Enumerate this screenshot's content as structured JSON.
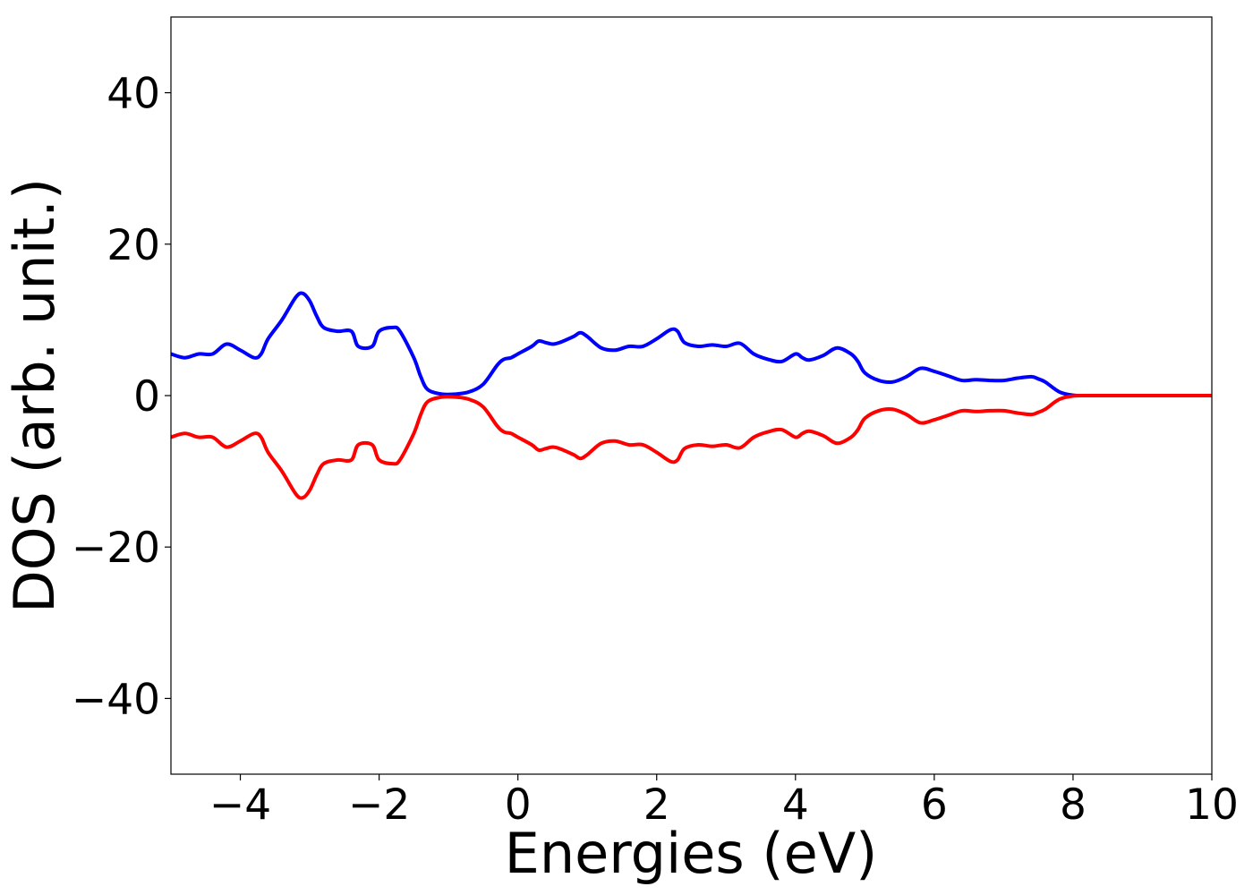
{
  "chart_data": {
    "type": "line",
    "title": "",
    "xlabel": "Energies (eV)",
    "ylabel": "DOS (arb. unit.)",
    "xlim": [
      -5,
      10
    ],
    "ylim": [
      -50,
      50
    ],
    "xticks": [
      -4,
      -2,
      0,
      2,
      4,
      6,
      8,
      10
    ],
    "yticks": [
      -40,
      -20,
      0,
      20,
      40
    ],
    "xtick_labels": [
      "−4",
      "−2",
      "0",
      "2",
      "4",
      "6",
      "8",
      "10"
    ],
    "ytick_labels": [
      "−40",
      "−20",
      "0",
      "20",
      "40"
    ],
    "grid": false,
    "legend": "none",
    "x": [
      -5.0,
      -4.8,
      -4.6,
      -4.4,
      -4.2,
      -4.0,
      -3.8,
      -3.7,
      -3.6,
      -3.4,
      -3.2,
      -3.1,
      -3.0,
      -2.9,
      -2.8,
      -2.6,
      -2.4,
      -2.3,
      -2.1,
      -2.0,
      -1.8,
      -1.7,
      -1.5,
      -1.4,
      -1.3,
      -1.1,
      -0.9,
      -0.7,
      -0.5,
      -0.3,
      -0.2,
      -0.1,
      0.0,
      0.2,
      0.3,
      0.4,
      0.5,
      0.6,
      0.8,
      0.9,
      1.0,
      1.2,
      1.4,
      1.6,
      1.8,
      2.0,
      2.2,
      2.3,
      2.4,
      2.6,
      2.8,
      3.0,
      3.2,
      3.4,
      3.6,
      3.8,
      4.0,
      4.1,
      4.2,
      4.4,
      4.6,
      4.8,
      4.9,
      5.0,
      5.2,
      5.4,
      5.6,
      5.8,
      6.0,
      6.2,
      6.4,
      6.6,
      6.8,
      7.0,
      7.2,
      7.4,
      7.5,
      7.6,
      7.8,
      8.0,
      8.2,
      8.5,
      9.0,
      9.5,
      10.0
    ],
    "series": [
      {
        "color": "#0000ff",
        "values": [
          5.5,
          5.0,
          5.5,
          5.5,
          6.8,
          6.0,
          5.0,
          5.5,
          7.5,
          10.0,
          13.0,
          13.5,
          12.5,
          10.5,
          9.0,
          8.5,
          8.5,
          6.5,
          6.5,
          8.5,
          9.0,
          8.5,
          5.0,
          2.5,
          0.8,
          0.2,
          0.2,
          0.5,
          1.5,
          4.0,
          4.8,
          5.0,
          5.5,
          6.5,
          7.2,
          7.0,
          6.8,
          7.0,
          7.8,
          8.3,
          7.8,
          6.3,
          6.0,
          6.5,
          6.5,
          7.5,
          8.7,
          8.5,
          7.0,
          6.5,
          6.7,
          6.5,
          6.9,
          5.5,
          4.8,
          4.5,
          5.5,
          5.0,
          4.7,
          5.3,
          6.3,
          5.5,
          4.5,
          3.0,
          2.0,
          1.8,
          2.5,
          3.6,
          3.2,
          2.6,
          2.0,
          2.1,
          2.0,
          2.0,
          2.3,
          2.5,
          2.2,
          1.8,
          0.5,
          0.05,
          0.0,
          0.0,
          0.0,
          0.0,
          0.0
        ]
      },
      {
        "color": "#ff0000",
        "values": [
          -5.5,
          -5.0,
          -5.5,
          -5.5,
          -6.8,
          -6.0,
          -5.0,
          -5.5,
          -7.5,
          -10.0,
          -13.0,
          -13.5,
          -12.5,
          -10.5,
          -9.0,
          -8.5,
          -8.5,
          -6.5,
          -6.5,
          -8.5,
          -9.0,
          -8.5,
          -5.0,
          -2.5,
          -0.8,
          -0.2,
          -0.2,
          -0.5,
          -1.5,
          -4.0,
          -4.8,
          -5.0,
          -5.5,
          -6.5,
          -7.2,
          -7.0,
          -6.8,
          -7.0,
          -7.8,
          -8.3,
          -7.8,
          -6.3,
          -6.0,
          -6.5,
          -6.5,
          -7.5,
          -8.7,
          -8.5,
          -7.0,
          -6.5,
          -6.7,
          -6.5,
          -6.9,
          -5.5,
          -4.8,
          -4.5,
          -5.5,
          -5.0,
          -4.7,
          -5.3,
          -6.3,
          -5.5,
          -4.5,
          -3.0,
          -2.0,
          -1.8,
          -2.5,
          -3.6,
          -3.2,
          -2.6,
          -2.0,
          -2.1,
          -2.0,
          -2.0,
          -2.3,
          -2.5,
          -2.2,
          -1.8,
          -0.5,
          -0.05,
          0.0,
          0.0,
          0.0,
          0.0,
          0.0
        ]
      }
    ]
  }
}
